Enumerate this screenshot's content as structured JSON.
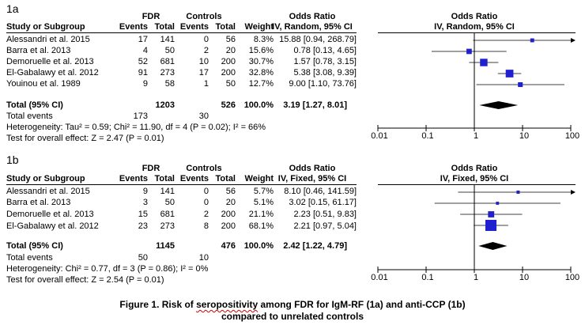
{
  "caption": {
    "pre": "Figure 1. Risk of ",
    "squiggle": "seropositivity",
    "post": " among FDR for IgM-RF (1a) and anti-CCP (1b)",
    "line2": "compared to unrelated controls"
  },
  "chart_data": [
    {
      "type": "forest",
      "panel_label": "1a",
      "headers": {
        "group1": "FDR",
        "group2": "Controls",
        "study": "Study or Subgroup",
        "events": "Events",
        "total": "Total",
        "weight": "Weight",
        "or_title": "Odds Ratio",
        "or_sub": "IV, Random, 95% CI",
        "plot_title": "Odds Ratio",
        "plot_sub": "IV, Random, 95% CI"
      },
      "studies": [
        {
          "name": "Alessandri et al. 2015",
          "e1": "17",
          "t1": "141",
          "e2": "0",
          "t2": "56",
          "weight": "8.3%",
          "ci_text": "15.88 [0.94, 268.79]",
          "or": 15.88,
          "lo": 0.94,
          "hi": 268.79,
          "w": 8.3,
          "arrow_right": true
        },
        {
          "name": "Barra et al. 2013",
          "e1": "4",
          "t1": "50",
          "e2": "2",
          "t2": "20",
          "weight": "15.6%",
          "ci_text": "0.78 [0.13, 4.65]",
          "or": 0.78,
          "lo": 0.13,
          "hi": 4.65,
          "w": 15.6,
          "arrow_right": false
        },
        {
          "name": "Demoruelle et al. 2013",
          "e1": "52",
          "t1": "681",
          "e2": "10",
          "t2": "200",
          "weight": "30.7%",
          "ci_text": "1.57 [0.78, 3.15]",
          "or": 1.57,
          "lo": 0.78,
          "hi": 3.15,
          "w": 30.7,
          "arrow_right": false
        },
        {
          "name": "El-Gabalawy et al. 2012",
          "e1": "91",
          "t1": "273",
          "e2": "17",
          "t2": "200",
          "weight": "32.8%",
          "ci_text": "5.38 [3.08, 9.39]",
          "or": 5.38,
          "lo": 3.08,
          "hi": 9.39,
          "w": 32.8,
          "arrow_right": false
        },
        {
          "name": "Youinou et al. 1989",
          "e1": "9",
          "t1": "58",
          "e2": "1",
          "t2": "50",
          "weight": "12.7%",
          "ci_text": "9.00 [1.10, 73.76]",
          "or": 9.0,
          "lo": 1.1,
          "hi": 73.76,
          "w": 12.7,
          "arrow_right": false
        }
      ],
      "total": {
        "label": "Total (95% CI)",
        "t1": "1203",
        "t2": "526",
        "weight": "100.0%",
        "ci_text": "3.19 [1.27, 8.01]",
        "or": 3.19,
        "lo": 1.27,
        "hi": 8.01
      },
      "total_events": {
        "label": "Total events",
        "e1": "173",
        "e2": "30"
      },
      "heterogeneity": "Heterogeneity: Tau² = 0.59; Chi² = 11.90, df = 4 (P = 0.02); I² = 66%",
      "overall_effect": "Test for overall effect: Z = 2.47 (P = 0.01)",
      "axis": {
        "scale": "log",
        "min": 0.01,
        "max": 100,
        "ticks": [
          {
            "v": 0.01,
            "label": "0.01"
          },
          {
            "v": 0.1,
            "label": "0.1"
          },
          {
            "v": 1,
            "label": "1"
          },
          {
            "v": 10,
            "label": "10"
          },
          {
            "v": 100,
            "label": "100"
          }
        ]
      }
    },
    {
      "type": "forest",
      "panel_label": "1b",
      "headers": {
        "group1": "FDR",
        "group2": "Controls",
        "study": "Study or Subgroup",
        "events": "Events",
        "total": "Total",
        "weight": "Weight",
        "or_title": "Odds Ratio",
        "or_sub": "IV, Fixed, 95% CI",
        "plot_title": "Odds Ratio",
        "plot_sub": "IV, Fixed, 95% CI"
      },
      "studies": [
        {
          "name": "Alessandri et al. 2015",
          "e1": "9",
          "t1": "141",
          "e2": "0",
          "t2": "56",
          "weight": "5.7%",
          "ci_text": "8.10 [0.46, 141.59]",
          "or": 8.1,
          "lo": 0.46,
          "hi": 141.59,
          "w": 5.7,
          "arrow_right": true
        },
        {
          "name": "Barra et al. 2013",
          "e1": "3",
          "t1": "50",
          "e2": "0",
          "t2": "20",
          "weight": "5.1%",
          "ci_text": "3.02 [0.15, 61.17]",
          "or": 3.02,
          "lo": 0.15,
          "hi": 61.17,
          "w": 5.1,
          "arrow_right": false
        },
        {
          "name": "Demoruelle et al. 2013",
          "e1": "15",
          "t1": "681",
          "e2": "2",
          "t2": "200",
          "weight": "21.1%",
          "ci_text": "2.23 [0.51, 9.83]",
          "or": 2.23,
          "lo": 0.51,
          "hi": 9.83,
          "w": 21.1,
          "arrow_right": false
        },
        {
          "name": "El-Gabalawy et al. 2012",
          "e1": "23",
          "t1": "273",
          "e2": "8",
          "t2": "200",
          "weight": "68.1%",
          "ci_text": "2.21 [0.97, 5.04]",
          "or": 2.21,
          "lo": 0.97,
          "hi": 5.04,
          "w": 68.1,
          "arrow_right": false
        }
      ],
      "total": {
        "label": "Total (95% CI)",
        "t1": "1145",
        "t2": "476",
        "weight": "100.0%",
        "ci_text": "2.42 [1.22, 4.79]",
        "or": 2.42,
        "lo": 1.22,
        "hi": 4.79
      },
      "total_events": {
        "label": "Total events",
        "e1": "50",
        "e2": "10"
      },
      "heterogeneity": "Heterogeneity: Chi² = 0.77, df = 3 (P = 0.86); I² = 0%",
      "overall_effect": "Test for overall effect: Z = 2.54 (P = 0.01)",
      "axis": {
        "scale": "log",
        "min": 0.01,
        "max": 100,
        "ticks": [
          {
            "v": 0.01,
            "label": "0.01"
          },
          {
            "v": 0.1,
            "label": "0.1"
          },
          {
            "v": 1,
            "label": "1"
          },
          {
            "v": 10,
            "label": "10"
          },
          {
            "v": 100,
            "label": "100"
          }
        ]
      }
    }
  ]
}
